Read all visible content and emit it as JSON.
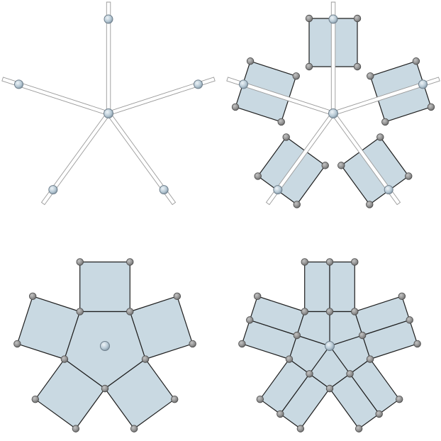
{
  "figure": {
    "panels": [
      "spokes-with-end-joints",
      "spokes-with-square-frames",
      "pentagon-with-square-faces",
      "subdivided-pentagon-with-strip-faces"
    ]
  },
  "colors": {
    "background": "#ffffff",
    "face_fill": "#c9d9e2",
    "edge_stroke": "#1e1e1e",
    "vertex_fill": "#8a8a8a",
    "hub_fill": "#b8cad6",
    "rod_fill": "#ffffff",
    "rod_stroke": "#9a9a9a"
  }
}
